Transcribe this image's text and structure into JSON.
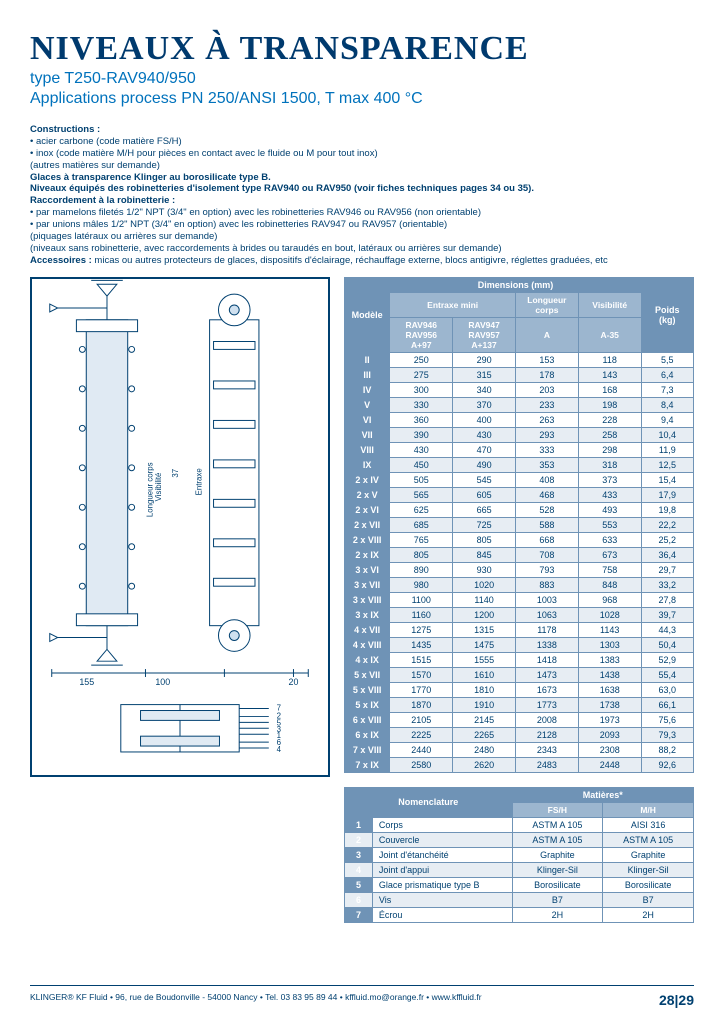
{
  "header": {
    "title": "NIVEAUX À TRANSPARENCE",
    "subtitle1": "type T250-RAV940/950",
    "subtitle2": "Applications process PN 250/ANSI 1500, T max 400 °C"
  },
  "body": {
    "constructions_h": "Constructions :",
    "c1": "• acier carbone (code matière FS/H)",
    "c2": "• inox (code matière M/H pour pièces en contact avec le fluide ou M pour tout inox)",
    "c3": "(autres matières sur demande)",
    "glaces": "Glaces à transparence Klinger au borosilicate type B.",
    "niveaux": "Niveaux équipés des robinetteries d'isolement type RAV940 ou RAV950 (voir fiches techniques pages 34 ou 35).",
    "racc_h": "Raccordement à la robinetterie :",
    "r1": "• par mamelons filetés 1/2\" NPT (3/4\" en option) avec les robinetteries RAV946 ou RAV956 (non orientable)",
    "r2": "• par unions mâles 1/2\" NPT (3/4\" en option) avec les robinetteries RAV947 ou RAV957 (orientable)",
    "r3": "(piquages latéraux ou arrières sur demande)",
    "r4": "(niveaux sans robinetterie, avec raccordements à brides ou taraudés en bout, latéraux ou arrières sur demande)",
    "acc_h": "Accessoires :",
    "acc": " micas ou autres protecteurs de glaces, dispositifs d'éclairage, réchauffage externe, blocs antigivre, réglettes graduées, etc"
  },
  "diagram": {
    "lcv_label": "Longueur corps\nVisibilité",
    "entraxe_label": "Entraxe",
    "dim37": "37",
    "dim155": "155",
    "dim100": "100",
    "dim20": "20",
    "parts_list": [
      "7",
      "2",
      "5",
      "3",
      "1",
      "6",
      "4"
    ],
    "colors": {
      "stroke": "#004070",
      "fill": "#cfe0ef"
    }
  },
  "dim_table": {
    "h_model": "Modèle",
    "h_dimensions": "Dimensions (mm)",
    "h_weight": "Poids\n(kg)",
    "h_entraxe": "Entraxe mini",
    "h_lc": "Longueur corps",
    "h_vis": "Visibilité",
    "sub1": "RAV946\nRAV956\nA+97",
    "sub2": "RAV947\nRAV957\nA+137",
    "sub3": "A",
    "sub4": "A-35",
    "rows": [
      [
        "II",
        "250",
        "290",
        "153",
        "118",
        "5,5"
      ],
      [
        "III",
        "275",
        "315",
        "178",
        "143",
        "6,4"
      ],
      [
        "IV",
        "300",
        "340",
        "203",
        "168",
        "7,3"
      ],
      [
        "V",
        "330",
        "370",
        "233",
        "198",
        "8,4"
      ],
      [
        "VI",
        "360",
        "400",
        "263",
        "228",
        "9,4"
      ],
      [
        "VII",
        "390",
        "430",
        "293",
        "258",
        "10,4"
      ],
      [
        "VIII",
        "430",
        "470",
        "333",
        "298",
        "11,9"
      ],
      [
        "IX",
        "450",
        "490",
        "353",
        "318",
        "12,5"
      ],
      [
        "2 x IV",
        "505",
        "545",
        "408",
        "373",
        "15,4"
      ],
      [
        "2 x V",
        "565",
        "605",
        "468",
        "433",
        "17,9"
      ],
      [
        "2 x VI",
        "625",
        "665",
        "528",
        "493",
        "19,8"
      ],
      [
        "2 x VII",
        "685",
        "725",
        "588",
        "553",
        "22,2"
      ],
      [
        "2 x VIII",
        "765",
        "805",
        "668",
        "633",
        "25,2"
      ],
      [
        "2 x IX",
        "805",
        "845",
        "708",
        "673",
        "36,4"
      ],
      [
        "3 x VI",
        "890",
        "930",
        "793",
        "758",
        "29,7"
      ],
      [
        "3 x VII",
        "980",
        "1020",
        "883",
        "848",
        "33,2"
      ],
      [
        "3 x VIII",
        "1100",
        "1140",
        "1003",
        "968",
        "27,8"
      ],
      [
        "3 x IX",
        "1160",
        "1200",
        "1063",
        "1028",
        "39,7"
      ],
      [
        "4 x VII",
        "1275",
        "1315",
        "1178",
        "1143",
        "44,3"
      ],
      [
        "4 x VIII",
        "1435",
        "1475",
        "1338",
        "1303",
        "50,4"
      ],
      [
        "4 x IX",
        "1515",
        "1555",
        "1418",
        "1383",
        "52,9"
      ],
      [
        "5 x VII",
        "1570",
        "1610",
        "1473",
        "1438",
        "55,4"
      ],
      [
        "5 x VIII",
        "1770",
        "1810",
        "1673",
        "1638",
        "63,0"
      ],
      [
        "5 x IX",
        "1870",
        "1910",
        "1773",
        "1738",
        "66,1"
      ],
      [
        "6 x VIII",
        "2105",
        "2145",
        "2008",
        "1973",
        "75,6"
      ],
      [
        "6 x IX",
        "2225",
        "2265",
        "2128",
        "2093",
        "79,3"
      ],
      [
        "7 x VIII",
        "2440",
        "2480",
        "2343",
        "2308",
        "88,2"
      ],
      [
        "7 x IX",
        "2580",
        "2620",
        "2483",
        "2448",
        "92,6"
      ]
    ]
  },
  "nomen_table": {
    "h_nom": "Nomenclature",
    "h_mat": "Matières*",
    "h_fsh": "FS/H",
    "h_mh": "M/H",
    "rows": [
      [
        "1",
        "Corps",
        "ASTM A 105",
        "AISI 316"
      ],
      [
        "2",
        "Couvercle",
        "ASTM A 105",
        "ASTM A 105"
      ],
      [
        "3",
        "Joint d'étanchéité",
        "Graphite",
        "Graphite"
      ],
      [
        "4",
        "Joint d'appui",
        "Klinger-Sil",
        "Klinger-Sil"
      ],
      [
        "5",
        "Glace prismatique type B",
        "Borosilicate",
        "Borosilicate"
      ],
      [
        "6",
        "Vis",
        "B7",
        "B7"
      ],
      [
        "7",
        "Écrou",
        "2H",
        "2H"
      ]
    ]
  },
  "footer": {
    "text": "KLINGER® KF Fluid • 96, rue de Boudonville - 54000 Nancy • Tel. 03 83 95 89 44 • kffluid.mo@orange.fr • www.kffluid.fr",
    "page": "28|29"
  },
  "style": {
    "brand_color": "#003a6e",
    "accent_color": "#0072bc",
    "th_bg": "#6f93b6",
    "th_sub_bg": "#9cb6cf",
    "alt_row_bg": "#e7edf3",
    "border": "#6f93b6"
  }
}
